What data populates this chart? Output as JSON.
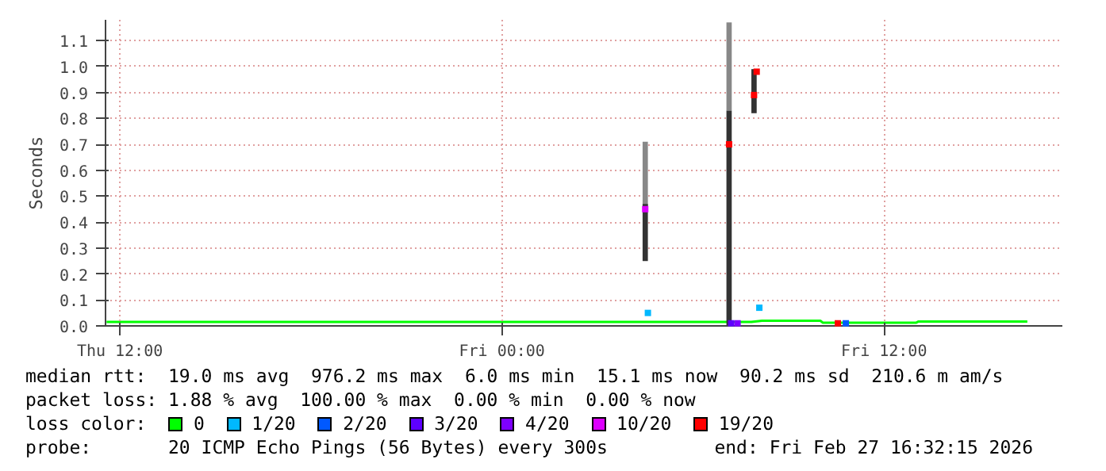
{
  "chart_data": {
    "type": "line",
    "ylabel": "Seconds",
    "legend_title": "loss color:",
    "legend": "bottom",
    "grid": true,
    "marker": "none",
    "xlim": [
      "2026-02-26T11:33",
      "2026-02-27T17:36"
    ],
    "xticks": [
      {
        "value": "2026-02-26T12:00",
        "label": "Thu 12:00"
      },
      {
        "value": "2026-02-27T00:00",
        "label": "Fri 00:00"
      },
      {
        "value": "2026-02-27T12:00",
        "label": "Fri 12:00"
      }
    ],
    "ylim": [
      0,
      1.18
    ],
    "yticks": [
      {
        "value": 0,
        "label": "0.0"
      },
      0.1,
      0.2,
      0.3,
      0.4,
      0.5,
      0.6,
      0.7,
      0.8,
      0.9,
      {
        "value": 1,
        "label": "1.0"
      },
      1.1
    ],
    "series": [
      {
        "type": "bar",
        "color": "#888888",
        "x": [
          "2026-02-27T04:30",
          "2026-02-27T07:08"
        ],
        "base": [
          0.46,
          0.83
        ],
        "values": [
          0.25,
          0.34
        ]
      },
      {
        "type": "bar",
        "color": "#333333",
        "x": [
          "2026-02-27T04:30",
          "2026-02-27T07:08",
          "2026-02-27T07:55"
        ],
        "base": [
          0.25,
          0,
          0.82
        ],
        "values": [
          0.22,
          0.83,
          0.17
        ]
      },
      {
        "name": "0",
        "color": "#00ff00",
        "x": [
          "2026-02-26T11:35",
          "2026-02-27T04:25",
          "2026-02-27T04:40",
          "2026-02-27T07:05",
          "2026-02-27T07:50",
          "2026-02-27T08:10",
          "2026-02-27T10:00",
          "2026-02-27T10:05",
          "2026-02-27T13:00",
          "2026-02-27T13:05",
          "2026-02-27T16:30"
        ],
        "values": [
          0.015,
          0.015,
          0.015,
          0.015,
          0.015,
          0.02,
          0.02,
          0.012,
          0.012,
          0.017,
          0.017
        ]
      },
      {
        "name": "1/20",
        "type": "scatter",
        "marker": "square",
        "color": "#00b8ff",
        "x": [
          "2026-02-27T04:35",
          "2026-02-27T08:05"
        ],
        "values": [
          0.05,
          0.07
        ]
      },
      {
        "name": "2/20",
        "type": "scatter",
        "marker": "square",
        "color": "#0059ff",
        "x": [
          "2026-02-27T10:48"
        ],
        "values": [
          0.01
        ]
      },
      {
        "name": "3/20",
        "type": "scatter",
        "marker": "square",
        "color": "#5e00ff",
        "x": [
          "2026-02-27T07:12"
        ],
        "values": [
          0.01
        ]
      },
      {
        "name": "4/20",
        "type": "scatter",
        "marker": "square",
        "color": "#7e00ff",
        "x": [
          "2026-02-27T07:24"
        ],
        "values": [
          0.01
        ]
      },
      {
        "name": "10/20",
        "type": "scatter",
        "marker": "square",
        "color": "#dd00ff",
        "x": [
          "2026-02-27T04:30"
        ],
        "values": [
          0.45
        ]
      },
      {
        "name": "19/20",
        "type": "scatter",
        "marker": "square",
        "color": "#ff0000",
        "x": [
          "2026-02-27T07:08",
          "2026-02-27T07:55",
          "2026-02-27T08:00",
          "2026-02-27T10:33"
        ],
        "values": [
          0.7,
          0.89,
          0.98,
          0.01
        ]
      }
    ],
    "annotations": [
      "median rtt:  19.0 ms avg  976.2 ms max  6.0 ms min  15.1 ms now  90.2 ms sd  210.6 m am/s",
      "packet loss: 1.88 % avg  100.00 % max  0.00 % min  0.00 % now",
      "probe:       20 ICMP Echo Pings (56 Bytes) every 300s",
      "end: Fri Feb 27 16:32:15 2026"
    ]
  }
}
